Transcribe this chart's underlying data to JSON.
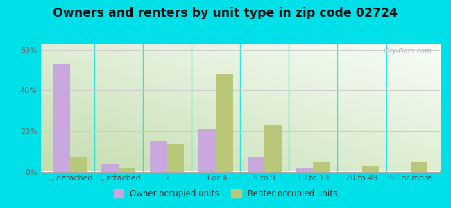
{
  "title": "Owners and renters by unit type in zip code 02724",
  "categories": [
    "1, detached",
    "1, attached",
    "2",
    "3 or 4",
    "5 to 9",
    "10 to 19",
    "20 to 49",
    "50 or more"
  ],
  "owner_values": [
    53,
    4,
    15,
    21,
    7,
    2,
    0,
    0
  ],
  "renter_values": [
    7,
    1.5,
    14,
    48,
    23,
    5,
    3,
    5
  ],
  "owner_color": "#c9a8e0",
  "renter_color": "#b8c878",
  "ylim": [
    0,
    63
  ],
  "yticks": [
    0,
    20,
    40,
    60
  ],
  "ytick_labels": [
    "0%",
    "20%",
    "40%",
    "60%"
  ],
  "outer_bg": "#00e0e8",
  "legend_owner": "Owner occupied units",
  "legend_renter": "Renter occupied units",
  "watermark": "City-Data.com",
  "title_fontsize": 12.5,
  "axis_fontsize": 8,
  "legend_fontsize": 8.5,
  "bg_color_green": "#c5ddb0",
  "bg_color_white": "#f2f8f2"
}
